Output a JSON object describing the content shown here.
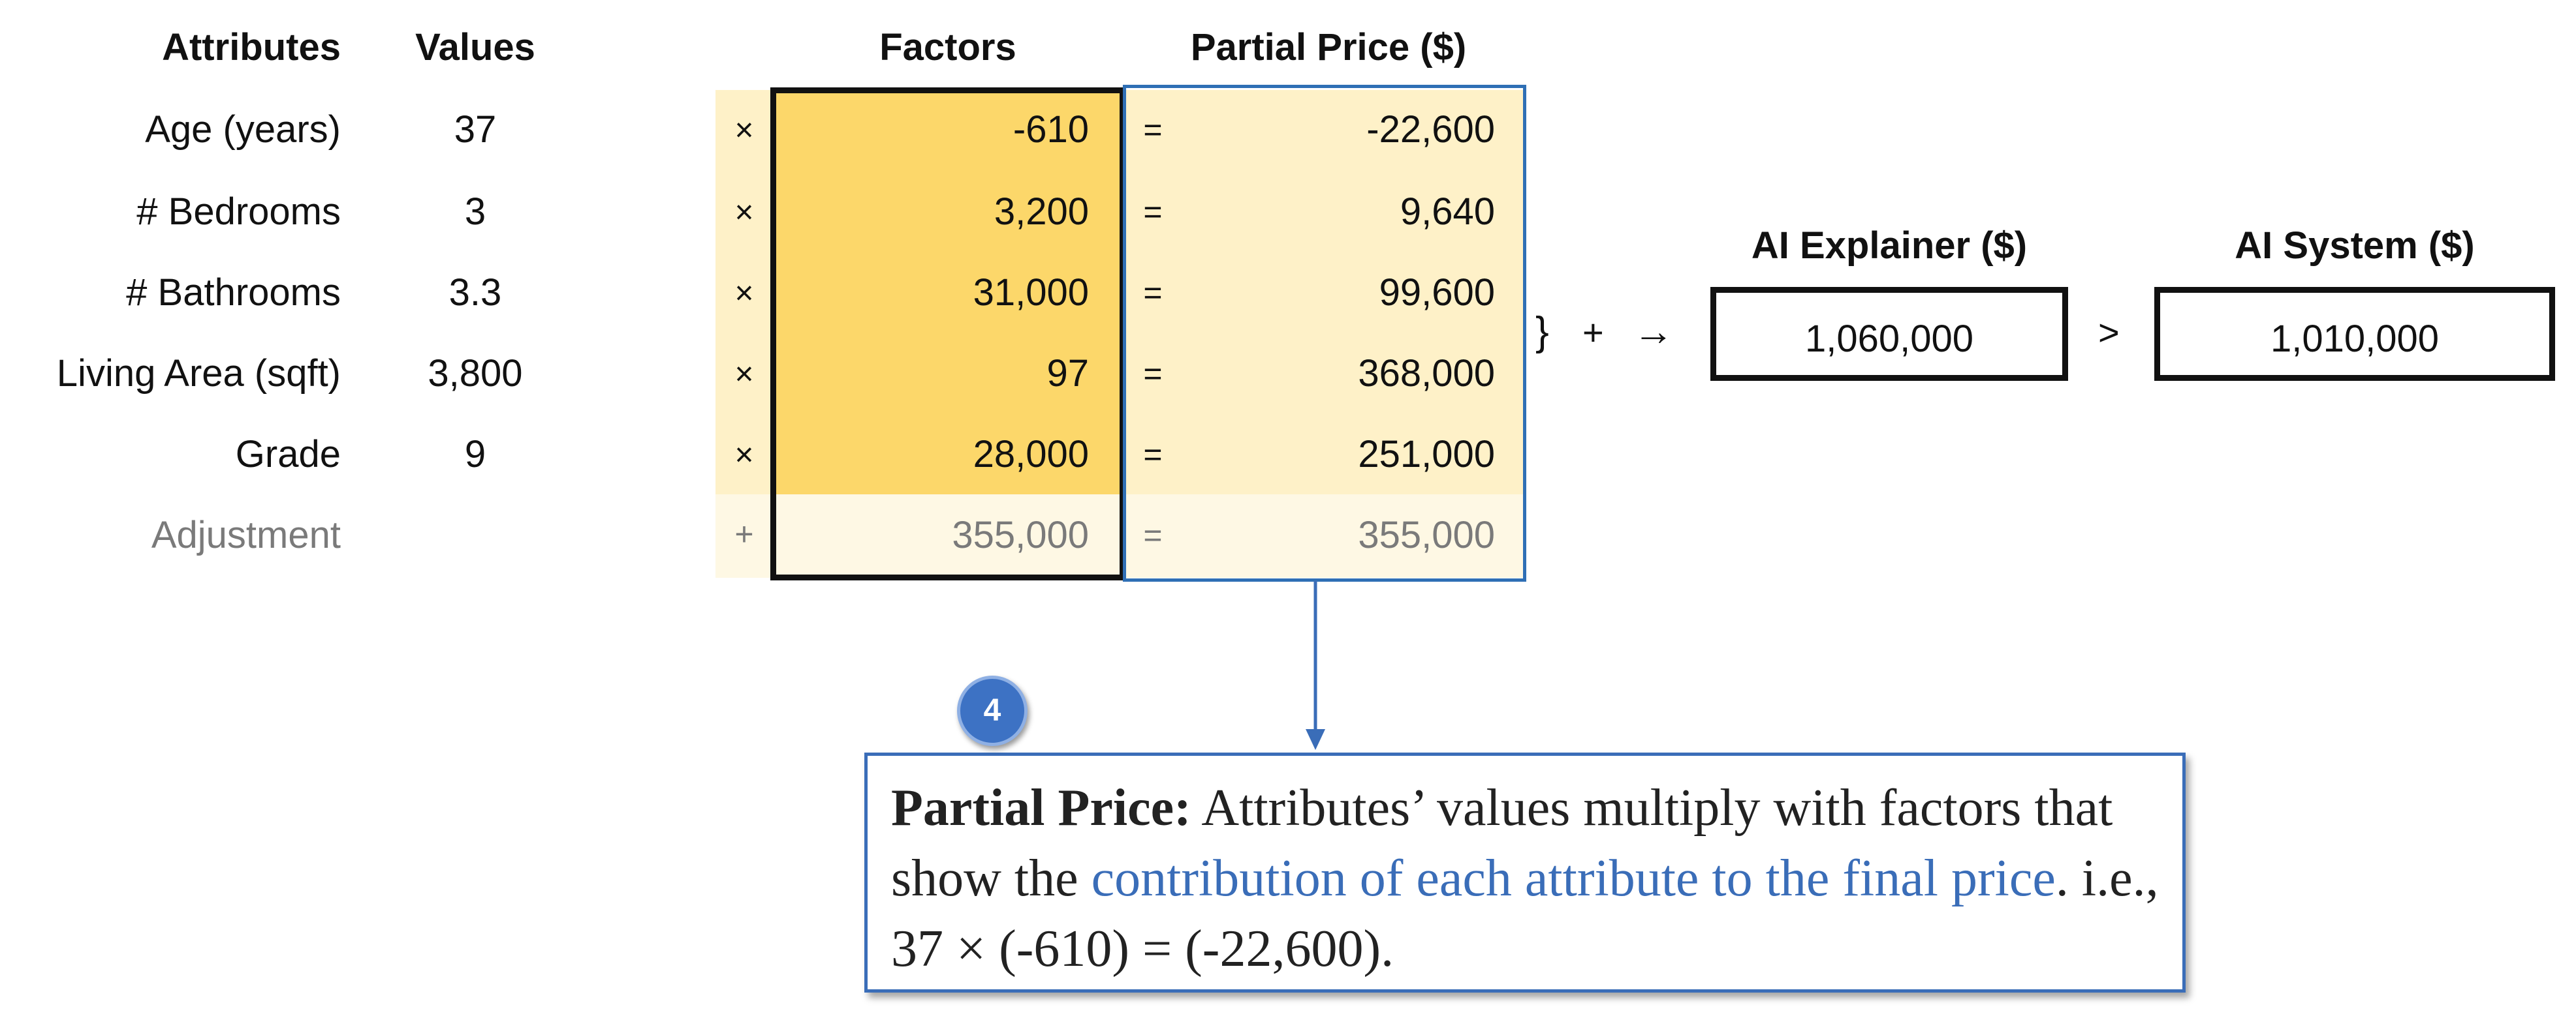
{
  "headers": {
    "attributes": "Attributes",
    "values": "Values",
    "factors": "Factors",
    "partial_price": "Partial Price ($)",
    "ai_explainer": "AI Explainer ($)",
    "ai_system": "AI System ($)"
  },
  "rows": [
    {
      "attribute": "Age (years)",
      "value": "37",
      "op": "×",
      "factor": "-610",
      "eq": "=",
      "partial": "-22,600"
    },
    {
      "attribute": "# Bedrooms",
      "value": "3",
      "op": "×",
      "factor": "3,200",
      "eq": "=",
      "partial": "9,640"
    },
    {
      "attribute": "# Bathrooms",
      "value": "3.3",
      "op": "×",
      "factor": "31,000",
      "eq": "=",
      "partial": "99,600"
    },
    {
      "attribute": "Living Area (sqft)",
      "value": "3,800",
      "op": "×",
      "factor": "97",
      "eq": "=",
      "partial": "368,000"
    },
    {
      "attribute": "Grade",
      "value": "9",
      "op": "×",
      "factor": "28,000",
      "eq": "=",
      "partial": "251,000"
    }
  ],
  "adjustment": {
    "attribute": "Adjustment",
    "op": "+",
    "factor": "355,000",
    "eq": "=",
    "partial": "355,000"
  },
  "sum_symbols": {
    "brace": "}",
    "plus": "+",
    "arrow": "→",
    "greater": ">"
  },
  "ai_explainer_value": "1,060,000",
  "ai_system_value": "1,010,000",
  "callout": {
    "badge": "4",
    "title": "Partial Price:",
    "text1": " Attributes’ values multiply with factors that show the ",
    "highlight": "contribution of each attribute to the final price",
    "text2": ". i.e., 37 × (-610) = (-22,600)."
  },
  "colors": {
    "factor_fill": "#fcd76a",
    "partial_fill": "#fef1c8",
    "adjust_fill": "#fef8e4",
    "accent_blue": "#3a6db8"
  }
}
